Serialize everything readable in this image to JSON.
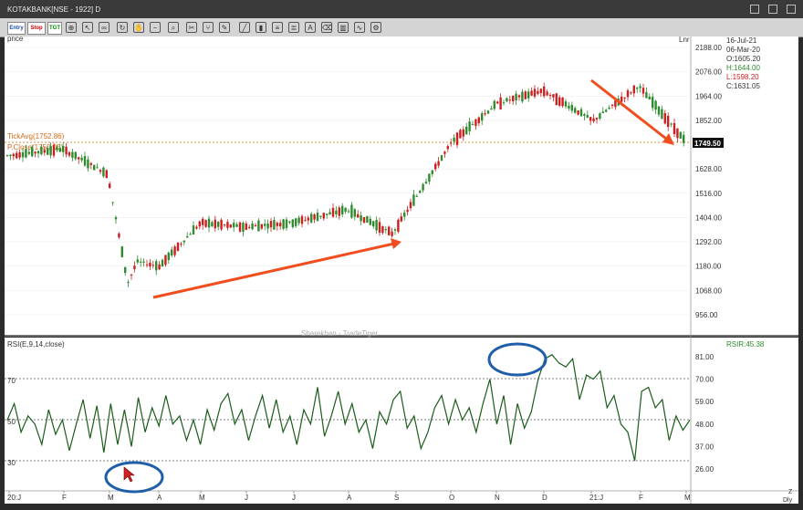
{
  "window": {
    "title": "KOTAKBANK[NSE - 1922] D"
  },
  "toolbar": {
    "entry_label": "Entry",
    "stop_label": "Stop",
    "tgt_label": "TGT",
    "icons": [
      "crosshair-icon",
      "zoom-icon",
      "draw-line-icon",
      "trend-icon",
      "text-icon",
      "settings-icon",
      "chart-type-icon"
    ]
  },
  "price_panel": {
    "label": "price",
    "scale_mode": "Lnr",
    "tickavg_label": "TickAvg(1752.86)",
    "pclose_label": "P.Close(1750.05)",
    "current_price_tag": "1749.50",
    "watermark": "Sharekhan - TradeTiger",
    "info": {
      "date1": "16-Jul-21",
      "date2": "06-Mar-20",
      "open": "O:1605.20",
      "high": "H:1644.00",
      "low": "L:1598.20",
      "close": "C:1631.05"
    },
    "y_ticks": [
      "2188.00",
      "2076.00",
      "1964.00",
      "1852.00",
      "1628.00",
      "1516.00",
      "1404.00",
      "1292.00",
      "1180.00",
      "1068.00",
      "956.00"
    ]
  },
  "rsi_panel": {
    "label": "RSI(E,9,14,close)",
    "value_label": "RSIR:45.38",
    "left_levels": [
      "70",
      "50",
      "30"
    ],
    "y_ticks": [
      "81.00",
      "70.00",
      "59.00",
      "48.00",
      "37.00",
      "26.00"
    ]
  },
  "x_axis": {
    "labels": [
      "20:J",
      "F",
      "M",
      "A",
      "M",
      "J",
      "J",
      "A",
      "S",
      "O",
      "N",
      "D",
      "21:J",
      "F",
      "M"
    ],
    "corner_labels": [
      "Z",
      "Dly"
    ]
  },
  "colors": {
    "up": "#2e8b2e",
    "down": "#cc2020",
    "rsi_line": "#1a5c1a",
    "annotation": "#f04e1e",
    "circle": "#1f5ea8",
    "ref_line": "#e09040",
    "price_tag_bg": "#111111"
  },
  "chart_data": {
    "type": "candlestick",
    "y_range": [
      956,
      2188
    ],
    "approx_close_path": [
      {
        "x": "Jan-20",
        "y": 1690
      },
      {
        "x": "Feb-20",
        "y": 1720
      },
      {
        "x": "Mar-20 start",
        "y": 1605
      },
      {
        "x": "Mar-20 low",
        "y": 1100
      },
      {
        "x": "Apr-20",
        "y": 1200
      },
      {
        "x": "May-20",
        "y": 1180
      },
      {
        "x": "Jun-20",
        "y": 1380
      },
      {
        "x": "Jul-20",
        "y": 1360
      },
      {
        "x": "Aug-20",
        "y": 1380
      },
      {
        "x": "Sep-20",
        "y": 1440
      },
      {
        "x": "Oct-20",
        "y": 1330
      },
      {
        "x": "Nov-20",
        "y": 1750
      },
      {
        "x": "Dec-20",
        "y": 1930
      },
      {
        "x": "Jan-21",
        "y": 1990
      },
      {
        "x": "Feb-21",
        "y": 1850
      },
      {
        "x": "Mar-21",
        "y": 2010
      },
      {
        "x": "Jul-21",
        "y": 1749.5
      }
    ],
    "rsi_series": {
      "name": "RSI(E,9,14,close)",
      "values": [
        50,
        58,
        44,
        52,
        48,
        38,
        55,
        43,
        50,
        35,
        48,
        60,
        41,
        57,
        34,
        58,
        38,
        55,
        37,
        61,
        44,
        56,
        47,
        62,
        48,
        52,
        40,
        50,
        38,
        55,
        45,
        58,
        63,
        48,
        55,
        40,
        52,
        62,
        46,
        60,
        44,
        52,
        38,
        55,
        48,
        66,
        42,
        52,
        64,
        48,
        58,
        44,
        50,
        36,
        54,
        48,
        60,
        64,
        46,
        52,
        36,
        44,
        56,
        62,
        48,
        60,
        50,
        56,
        44,
        58,
        70,
        48,
        62,
        38,
        58,
        46,
        54,
        70,
        80,
        82,
        78,
        76,
        80,
        60,
        72,
        70,
        74,
        56,
        62,
        48,
        44,
        30,
        64,
        66,
        56,
        60,
        40,
        52,
        45,
        50
      ],
      "levels": [
        70,
        50,
        30
      ]
    }
  }
}
